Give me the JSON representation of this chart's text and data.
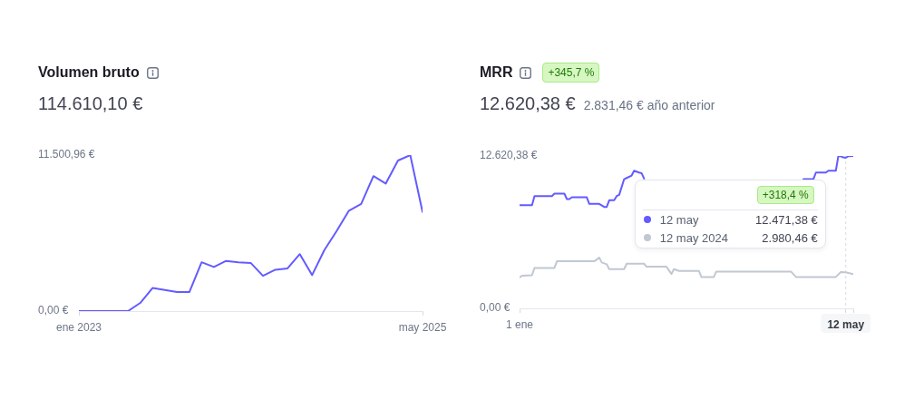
{
  "chart_data": [
    {
      "type": "line",
      "title": "Volumen bruto",
      "subtitle": "114.610,10 €",
      "x": [
        "2023-01",
        "2023-02",
        "2023-03",
        "2023-04",
        "2023-05",
        "2023-06",
        "2023-07",
        "2023-08",
        "2023-09",
        "2023-10",
        "2023-11",
        "2023-12",
        "2024-01",
        "2024-02",
        "2024-03",
        "2024-04",
        "2024-05",
        "2024-06",
        "2024-07",
        "2024-08",
        "2024-09",
        "2024-10",
        "2024-11",
        "2024-12",
        "2025-01",
        "2025-02",
        "2025-03",
        "2025-04",
        "2025-05"
      ],
      "values": [
        0,
        0,
        0,
        0,
        0,
        600,
        1700,
        1550,
        1400,
        1400,
        3600,
        3250,
        3700,
        3600,
        3550,
        2600,
        3050,
        3150,
        4200,
        2650,
        4500,
        5900,
        7400,
        7900,
        9950,
        9400,
        11100,
        11500,
        7300
      ],
      "color": "#635bff",
      "xlim": [
        "2023-01",
        "2025-05"
      ],
      "xticks": [
        {
          "value": "2023-01",
          "label": "ene 2023"
        },
        {
          "value": "2025-05",
          "label": "may 2025"
        }
      ],
      "ylim": [
        0,
        11500.96
      ],
      "yticks": [
        {
          "value": 0,
          "label": "0,00 €"
        },
        {
          "value": 11500.96,
          "label": "11.500,96 €"
        }
      ],
      "grid": false
    },
    {
      "type": "line",
      "title": "MRR",
      "subtitle": "12.620,38 €",
      "series": [
        {
          "color": "#635bff",
          "x": [
            "--01-01",
            "--01-06",
            "--01-07",
            "--01-14",
            "--01-15",
            "--01-19",
            "--01-20",
            "--01-21",
            "--01-22",
            "--01-28",
            "--01-29",
            "--02-02",
            "--02-04",
            "--02-05",
            "--02-06",
            "--02-08",
            "--02-09",
            "--02-10",
            "--02-12",
            "--02-13",
            "--02-15",
            "--02-16",
            "--02-18",
            "--02-19",
            "--02-20",
            "--02-21",
            "--04-25",
            "--04-29",
            "--04-30",
            "--05-04",
            "--05-05",
            "--05-08",
            "--05-09",
            "--05-10",
            "--05-11",
            "--05-12",
            "--05-13",
            "--05-15"
          ],
          "values": [
            8550,
            8550,
            9300,
            9300,
            9500,
            9500,
            9050,
            9050,
            9200,
            9200,
            8650,
            8650,
            8400,
            8400,
            8950,
            8950,
            9300,
            9400,
            10700,
            10800,
            11000,
            11400,
            11250,
            11200,
            10750,
            null,
            10700,
            10700,
            11250,
            11250,
            11400,
            11400,
            12600,
            12600,
            12500,
            12471.38,
            12600,
            12620.38
          ]
        },
        {
          "color": "#c0c8d2",
          "x": [
            "--01-01",
            "--01-02",
            "--01-06",
            "--01-07",
            "--01-15",
            "--01-16",
            "--01-31",
            "--02-02",
            "--02-03",
            "--02-05",
            "--02-06",
            "--02-12",
            "--02-13",
            "--02-20",
            "--02-21",
            "--03-01",
            "--03-03",
            "--03-04",
            "--03-06",
            "--03-14",
            "--03-15",
            "--03-20",
            "--03-21",
            "--04-20",
            "--04-22",
            "--05-08",
            "--05-10",
            "--05-12",
            "--05-15"
          ],
          "values": [
            2550,
            2700,
            2750,
            3350,
            3350,
            3900,
            3900,
            4200,
            3800,
            3650,
            3250,
            3250,
            3700,
            3700,
            3450,
            3450,
            2850,
            3250,
            3100,
            3100,
            2600,
            2600,
            3050,
            3050,
            2600,
            2600,
            3000,
            2980.46,
            2831.46
          ]
        }
      ],
      "xlim": [
        "--01-01",
        "--05-15"
      ],
      "xticks": [
        {
          "value": "--01-01",
          "label": "1 ene"
        },
        {
          "value": "--05-12",
          "label": "12 may"
        },
        {
          "value": "--05-15",
          "label": null
        }
      ],
      "ylim": [
        0,
        12620.38
      ],
      "yticks": [
        {
          "value": 0,
          "label": "0,00 €"
        },
        {
          "value": 12620.38,
          "label": "12.620,38 €"
        }
      ],
      "grid": false,
      "ref_lines": [
        {
          "axis": "x",
          "value": "--05-12",
          "line_style": "dashed",
          "color": "#d5dbe1"
        }
      ],
      "annotations": [
        "+345,7 %",
        "2.831,46 € año anterior",
        "+318,4 %",
        "12 may",
        "12.471,38 €",
        "12 may 2024",
        "2.980,46 €"
      ]
    }
  ]
}
